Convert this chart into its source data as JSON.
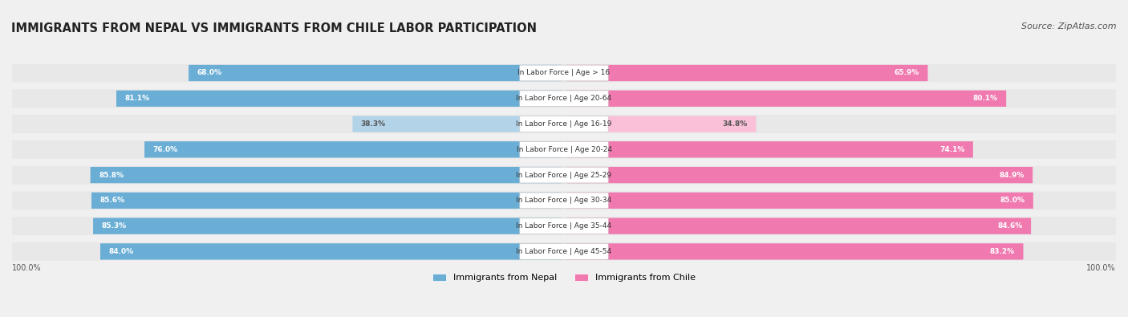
{
  "title": "IMMIGRANTS FROM NEPAL VS IMMIGRANTS FROM CHILE LABOR PARTICIPATION",
  "source": "Source: ZipAtlas.com",
  "categories": [
    "In Labor Force | Age > 16",
    "In Labor Force | Age 20-64",
    "In Labor Force | Age 16-19",
    "In Labor Force | Age 20-24",
    "In Labor Force | Age 25-29",
    "In Labor Force | Age 30-34",
    "In Labor Force | Age 35-44",
    "In Labor Force | Age 45-54"
  ],
  "nepal_values": [
    68.0,
    81.1,
    38.3,
    76.0,
    85.8,
    85.6,
    85.3,
    84.0
  ],
  "chile_values": [
    65.9,
    80.1,
    34.8,
    74.1,
    84.9,
    85.0,
    84.6,
    83.2
  ],
  "max_value": 100.0,
  "nepal_color_strong": "#6aaed6",
  "nepal_color_light": "#b3d4e8",
  "chile_color_strong": "#f07ab0",
  "chile_color_light": "#f9c0d8",
  "bg_color": "#f0f0f0",
  "row_bg_color": "#e8e8e8",
  "label_bg_color": "#ffffff",
  "threshold_strong": 50.0,
  "legend_nepal": "Immigrants from Nepal",
  "legend_chile": "Immigrants from Chile",
  "bottom_label": "100.0%"
}
